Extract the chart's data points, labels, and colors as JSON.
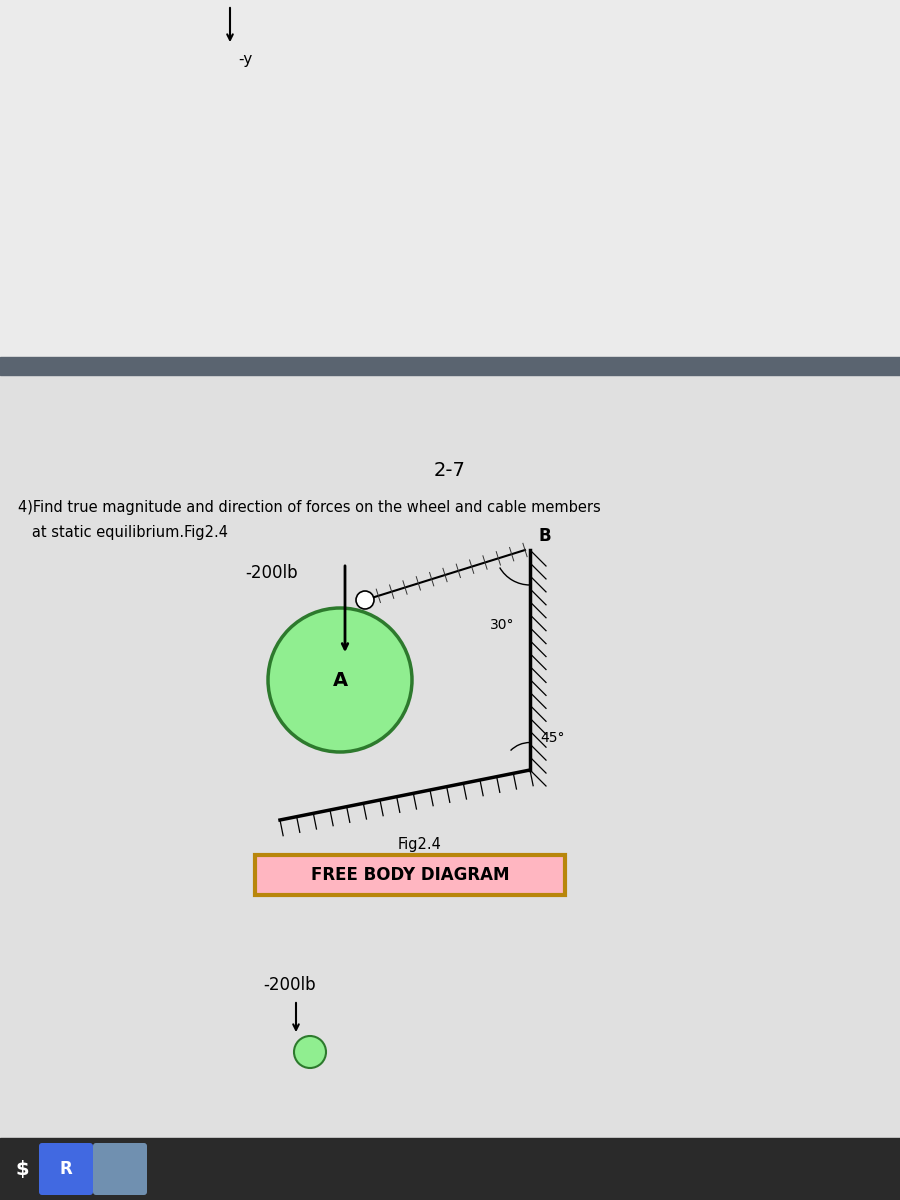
{
  "title": "2-7",
  "problem_line1": "4)Find true magnitude and direction of forces on the wheel and cable members",
  "problem_line2": "   at static equilibrium.Fig2.4",
  "fig_label": "Fig2.4",
  "free_body_label": "FREE BODY DIAGRAM",
  "force_label": "-200lb",
  "angle_30_label": "30°",
  "angle_45_label": "45°",
  "node_label": "B",
  "wheel_label": "A",
  "bg_top": "#eeeeee",
  "bg_bottom": "#e0e0e0",
  "bar_color": "#5a6470",
  "wheel_fill": "#90EE90",
  "wheel_edge": "#2d7a2d",
  "free_body_bg": "#FFB6C1",
  "free_body_border": "#B8860B",
  "taskbar_color": "#2a2a2a"
}
